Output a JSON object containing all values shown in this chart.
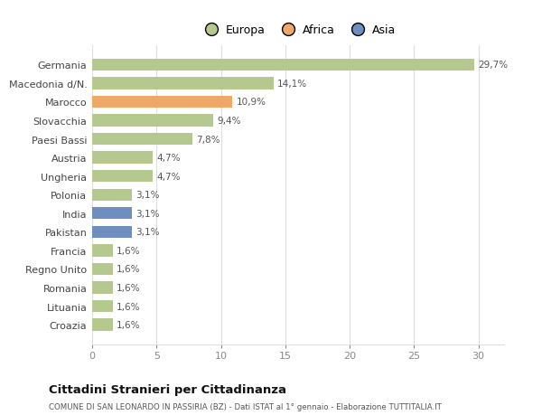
{
  "categories": [
    "Croazia",
    "Lituania",
    "Romania",
    "Regno Unito",
    "Francia",
    "Pakistan",
    "India",
    "Polonia",
    "Ungheria",
    "Austria",
    "Paesi Bassi",
    "Slovacchia",
    "Marocco",
    "Macedonia d/N.",
    "Germania"
  ],
  "values": [
    1.6,
    1.6,
    1.6,
    1.6,
    1.6,
    3.1,
    3.1,
    3.1,
    4.7,
    4.7,
    7.8,
    9.4,
    10.9,
    14.1,
    29.7
  ],
  "labels": [
    "1,6%",
    "1,6%",
    "1,6%",
    "1,6%",
    "1,6%",
    "3,1%",
    "3,1%",
    "3,1%",
    "4,7%",
    "4,7%",
    "7,8%",
    "9,4%",
    "10,9%",
    "14,1%",
    "29,7%"
  ],
  "colors": [
    "#b5c98e",
    "#b5c98e",
    "#b5c98e",
    "#b5c98e",
    "#b5c98e",
    "#6e8ebf",
    "#6e8ebf",
    "#b5c98e",
    "#b5c98e",
    "#b5c98e",
    "#b5c98e",
    "#b5c98e",
    "#f0a868",
    "#b5c98e",
    "#b5c98e"
  ],
  "legend_labels": [
    "Europa",
    "Africa",
    "Asia"
  ],
  "legend_colors": [
    "#b5c98e",
    "#f0a868",
    "#6e8ebf"
  ],
  "title": "Cittadini Stranieri per Cittadinanza",
  "subtitle": "COMUNE DI SAN LEONARDO IN PASSIRIA (BZ) - Dati ISTAT al 1° gennaio - Elaborazione TUTTITALIA.IT",
  "xlim": [
    0,
    32
  ],
  "xticks": [
    0,
    5,
    10,
    15,
    20,
    25,
    30
  ],
  "background_color": "#ffffff",
  "plot_bg_color": "#ffffff",
  "grid_color": "#dddddd",
  "label_color": "#555555",
  "tick_color": "#aaaaaa"
}
